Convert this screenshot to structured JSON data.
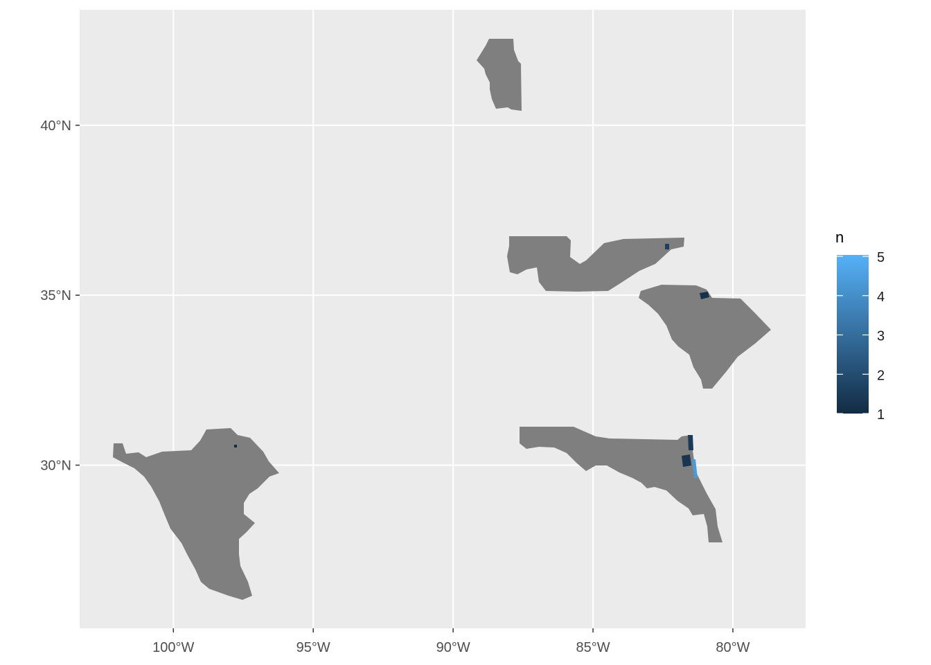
{
  "map": {
    "panel_background": "#ebebeb",
    "grid_color": "#ffffff",
    "region_fill": "#7f7f7f",
    "x_ticks": [
      {
        "lon": -100,
        "label": "100°W"
      },
      {
        "lon": -95,
        "label": "95°W"
      },
      {
        "lon": -90,
        "label": "90°W"
      },
      {
        "lon": -85,
        "label": "85°W"
      },
      {
        "lon": -80,
        "label": "80°W"
      }
    ],
    "y_ticks": [
      {
        "lat": 30,
        "label": "30°N"
      },
      {
        "lat": 35,
        "label": "35°N"
      },
      {
        "lat": 40,
        "label": "40°N"
      }
    ],
    "x_range": [
      -103.35,
      -77.4
    ],
    "y_range": [
      25.2,
      43.4
    ],
    "regions": [
      {
        "name": "texas-gulf-counties"
      },
      {
        "name": "illinois-counties"
      },
      {
        "name": "tennessee-counties"
      },
      {
        "name": "south-carolina"
      },
      {
        "name": "florida-north"
      }
    ]
  },
  "legend": {
    "title": "n",
    "min": 1,
    "max": 5,
    "labels": [
      "1",
      "2",
      "3",
      "4",
      "5"
    ],
    "color_low": "#132b43",
    "color_high": "#56b1f7"
  }
}
